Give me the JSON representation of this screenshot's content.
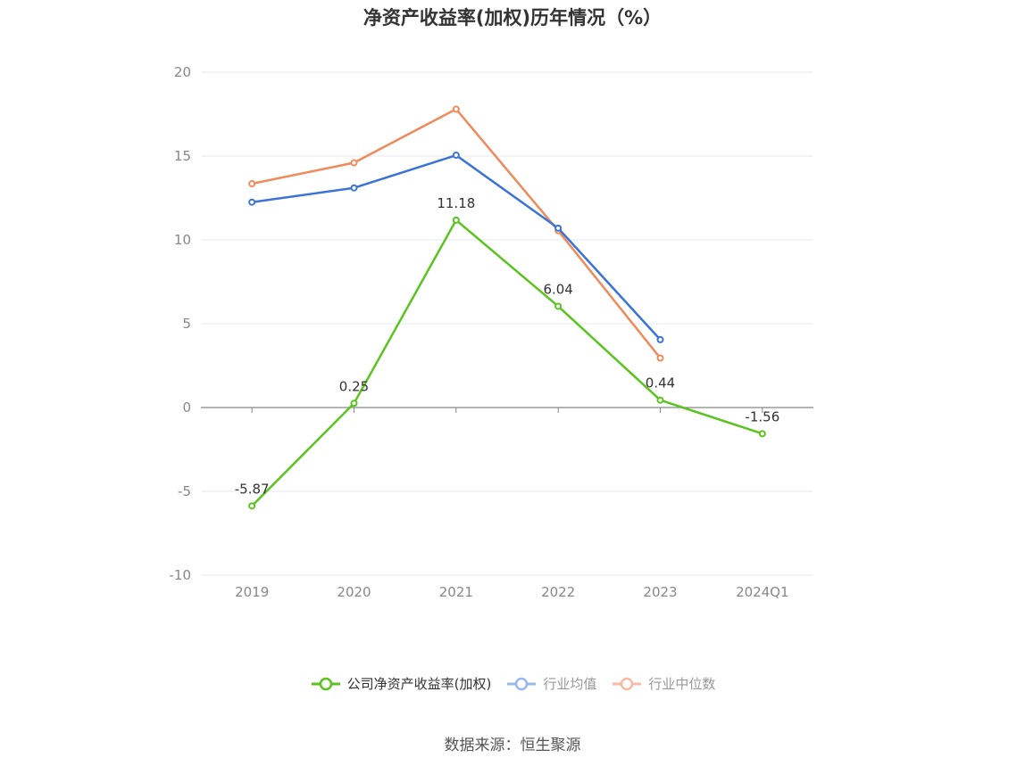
{
  "title": "净资产收益率(加权)历年情况（%）",
  "source": "数据来源：恒生聚源",
  "chart_data": {
    "type": "line",
    "title": "净资产收益率(加权)历年情况（%）",
    "categories": [
      "2019",
      "2020",
      "2021",
      "2022",
      "2023",
      "2024Q1"
    ],
    "ylim": [
      -10,
      20
    ],
    "yticks": [
      -10,
      -5,
      0,
      5,
      10,
      15,
      20
    ],
    "grid": true,
    "legend_position": "bottom",
    "series": [
      {
        "name": "公司净资产收益率(加权)",
        "color": "#5ac41f",
        "values": [
          -5.87,
          0.25,
          11.18,
          6.04,
          0.44,
          -1.56
        ],
        "data_labels": [
          "-5.87",
          "0.25",
          "11.18",
          "6.04",
          "0.44",
          "-1.56"
        ]
      },
      {
        "name": "行业均值",
        "color": "#3b74d8",
        "values": [
          12.25,
          13.1,
          15.05,
          10.7,
          4.05,
          null
        ]
      },
      {
        "name": "行业中位数",
        "color": "#f08a5a",
        "values": [
          13.35,
          14.6,
          17.8,
          10.55,
          2.95,
          null
        ]
      }
    ]
  },
  "legend": [
    {
      "label": "公司净资产收益率(加权)",
      "color": "#5ac41f",
      "active": true
    },
    {
      "label": "行业均值",
      "color": "#9bb8ec",
      "active": false
    },
    {
      "label": "行业中位数",
      "color": "#f5bba3",
      "active": false
    }
  ]
}
